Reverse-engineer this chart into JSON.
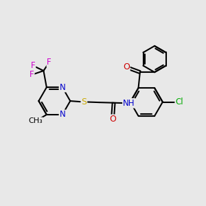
{
  "background_color": "#e8e8e8",
  "bond_color": "#000000",
  "bond_width": 1.5,
  "atom_colors": {
    "N": "#0000cc",
    "S": "#ccaa00",
    "O": "#cc0000",
    "F": "#cc00cc",
    "Cl": "#00aa00",
    "H": "#888888",
    "C": "#000000"
  },
  "font_size": 8.5,
  "fig_size": [
    3.0,
    3.0
  ],
  "dpi": 100
}
